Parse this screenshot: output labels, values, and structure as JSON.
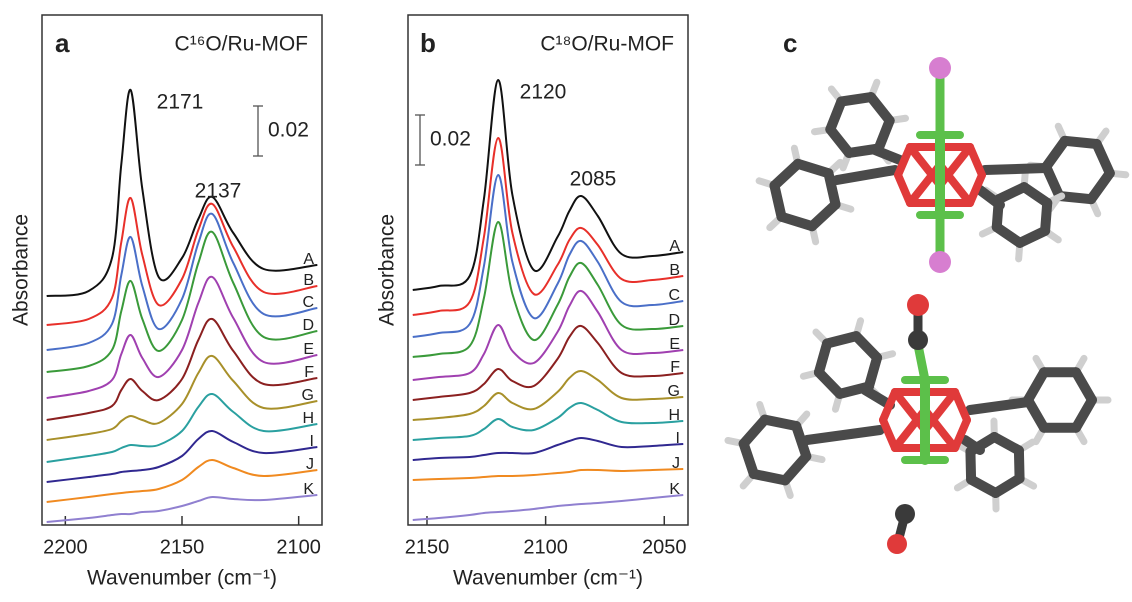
{
  "chart_data": [
    {
      "type": "line",
      "panel_label": "a",
      "title": "C¹⁶O/Ru-MOF",
      "xlabel": "Wavenumber (cm⁻¹)",
      "ylabel": "Absorbance",
      "x": [
        2208,
        2190,
        2180,
        2176,
        2172,
        2167,
        2160,
        2150,
        2143,
        2137,
        2128,
        2115,
        2092
      ],
      "xlim": [
        2210,
        2090
      ],
      "xticks": [
        2200,
        2150,
        2100
      ],
      "ylim": [
        0,
        0.204
      ],
      "scale_bar": 0.02,
      "annotations": [
        "2171",
        "2137"
      ],
      "series": [
        {
          "name": "A",
          "color": "#111111",
          "values": [
            0.0916,
            0.0936,
            0.1068,
            0.1444,
            0.174,
            0.1344,
            0.0992,
            0.1068,
            0.1224,
            0.1312,
            0.1168,
            0.1024,
            0.104
          ]
        },
        {
          "name": "B",
          "color": "#e8302a",
          "values": [
            0.08,
            0.0824,
            0.0908,
            0.1132,
            0.1308,
            0.108,
            0.088,
            0.0984,
            0.118,
            0.1284,
            0.1112,
            0.0932,
            0.0956
          ]
        },
        {
          "name": "C",
          "color": "#4a6fc8",
          "values": [
            0.07,
            0.0728,
            0.0804,
            0.1,
            0.1152,
            0.0956,
            0.0784,
            0.0904,
            0.1128,
            0.1244,
            0.1048,
            0.0844,
            0.0868
          ]
        },
        {
          "name": "D",
          "color": "#3a9a3a",
          "values": [
            0.0612,
            0.0636,
            0.07,
            0.0856,
            0.0976,
            0.0824,
            0.0696,
            0.082,
            0.1048,
            0.1172,
            0.0968,
            0.0752,
            0.0776
          ]
        },
        {
          "name": "E",
          "color": "#a040b0",
          "values": [
            0.0508,
            0.0536,
            0.058,
            0.0684,
            0.076,
            0.0668,
            0.0592,
            0.07,
            0.0888,
            0.0992,
            0.0828,
            0.0652,
            0.068
          ]
        },
        {
          "name": "F",
          "color": "#8b2020",
          "values": [
            0.042,
            0.0448,
            0.0476,
            0.054,
            0.0584,
            0.0536,
            0.05,
            0.0584,
            0.074,
            0.0824,
            0.0696,
            0.0564,
            0.0588
          ]
        },
        {
          "name": "G",
          "color": "#a8902a",
          "values": [
            0.034,
            0.0364,
            0.0384,
            0.0416,
            0.0436,
            0.042,
            0.0408,
            0.0484,
            0.0608,
            0.0676,
            0.0576,
            0.0468,
            0.0496
          ]
        },
        {
          "name": "H",
          "color": "#2aa0a0",
          "values": [
            0.0252,
            0.0276,
            0.0292,
            0.0308,
            0.032,
            0.0316,
            0.032,
            0.0376,
            0.0472,
            0.0524,
            0.0452,
            0.0376,
            0.0404
          ]
        },
        {
          "name": "I",
          "color": "#302890",
          "values": [
            0.0172,
            0.0192,
            0.0204,
            0.0212,
            0.0216,
            0.022,
            0.0232,
            0.0276,
            0.0344,
            0.0376,
            0.0332,
            0.0288,
            0.0312
          ]
        },
        {
          "name": "J",
          "color": "#f08a20",
          "values": [
            0.0092,
            0.0112,
            0.0124,
            0.0128,
            0.0132,
            0.0136,
            0.0144,
            0.018,
            0.0232,
            0.026,
            0.0228,
            0.0196,
            0.022
          ]
        },
        {
          "name": "K",
          "color": "#9080d0",
          "values": [
            0.0012,
            0.0028,
            0.004,
            0.0044,
            0.0044,
            0.0052,
            0.0056,
            0.0076,
            0.0096,
            0.0112,
            0.0104,
            0.01,
            0.012
          ]
        }
      ]
    },
    {
      "type": "line",
      "panel_label": "b",
      "title": "C¹⁸O/Ru-MOF",
      "xlabel": "Wavenumber (cm⁻¹)",
      "ylabel": "Absorbance",
      "x": [
        2156,
        2145,
        2132,
        2126,
        2120,
        2114,
        2105,
        2095,
        2090,
        2085,
        2078,
        2068,
        2055,
        2042
      ],
      "xlim": [
        2158,
        2040
      ],
      "xticks": [
        2150,
        2100,
        2050
      ],
      "ylim": [
        0,
        0.204
      ],
      "scale_bar": 0.02,
      "annotations": [
        "2120",
        "2085"
      ],
      "series": [
        {
          "name": "A",
          "color": "#111111",
          "values": [
            0.094,
            0.0956,
            0.0996,
            0.1304,
            0.178,
            0.132,
            0.102,
            0.1152,
            0.1256,
            0.1316,
            0.1236,
            0.1084,
            0.1076,
            0.1092
          ]
        },
        {
          "name": "B",
          "color": "#e8302a",
          "values": [
            0.084,
            0.0856,
            0.0892,
            0.1152,
            0.1548,
            0.1168,
            0.0924,
            0.104,
            0.114,
            0.1188,
            0.112,
            0.0984,
            0.098,
            0.0996
          ]
        },
        {
          "name": "C",
          "color": "#4a6fc8",
          "values": [
            0.0752,
            0.0768,
            0.0804,
            0.1036,
            0.14,
            0.1052,
            0.0828,
            0.0964,
            0.108,
            0.1136,
            0.1052,
            0.0892,
            0.088,
            0.0896
          ]
        },
        {
          "name": "D",
          "color": "#3a9a3a",
          "values": [
            0.0672,
            0.0684,
            0.0716,
            0.0908,
            0.1212,
            0.0924,
            0.074,
            0.088,
            0.0992,
            0.1048,
            0.096,
            0.08,
            0.0784,
            0.0796
          ]
        },
        {
          "name": "E",
          "color": "#a040b0",
          "values": [
            0.058,
            0.0592,
            0.0608,
            0.0684,
            0.08,
            0.0696,
            0.0648,
            0.0772,
            0.0876,
            0.0936,
            0.0852,
            0.07,
            0.0688,
            0.07
          ]
        },
        {
          "name": "F",
          "color": "#8b2020",
          "values": [
            0.05,
            0.0512,
            0.0528,
            0.0564,
            0.0624,
            0.0576,
            0.0556,
            0.0664,
            0.0752,
            0.0796,
            0.0728,
            0.0608,
            0.0596,
            0.0608
          ]
        },
        {
          "name": "G",
          "color": "#a8902a",
          "values": [
            0.042,
            0.0428,
            0.0444,
            0.0476,
            0.0528,
            0.0488,
            0.0464,
            0.0532,
            0.0588,
            0.0616,
            0.058,
            0.0508,
            0.0504,
            0.0512
          ]
        },
        {
          "name": "H",
          "color": "#2aa0a0",
          "values": [
            0.034,
            0.0348,
            0.0356,
            0.0384,
            0.0424,
            0.0392,
            0.038,
            0.0428,
            0.0468,
            0.0488,
            0.046,
            0.0412,
            0.0408,
            0.0416
          ]
        },
        {
          "name": "I",
          "color": "#302890",
          "values": [
            0.026,
            0.0268,
            0.0272,
            0.028,
            0.0288,
            0.0288,
            0.0288,
            0.032,
            0.0336,
            0.0348,
            0.0336,
            0.0312,
            0.0316,
            0.0324
          ]
        },
        {
          "name": "J",
          "color": "#f08a20",
          "values": [
            0.018,
            0.0184,
            0.0188,
            0.0192,
            0.0196,
            0.0196,
            0.02,
            0.0208,
            0.0212,
            0.022,
            0.022,
            0.0216,
            0.022,
            0.0224
          ]
        },
        {
          "name": "K",
          "color": "#9080d0",
          "values": [
            0.002,
            0.0028,
            0.004,
            0.0048,
            0.0052,
            0.0056,
            0.0064,
            0.0076,
            0.008,
            0.0084,
            0.0088,
            0.0096,
            0.0108,
            0.012
          ]
        }
      ]
    }
  ],
  "panel_c": {
    "label": "c"
  }
}
